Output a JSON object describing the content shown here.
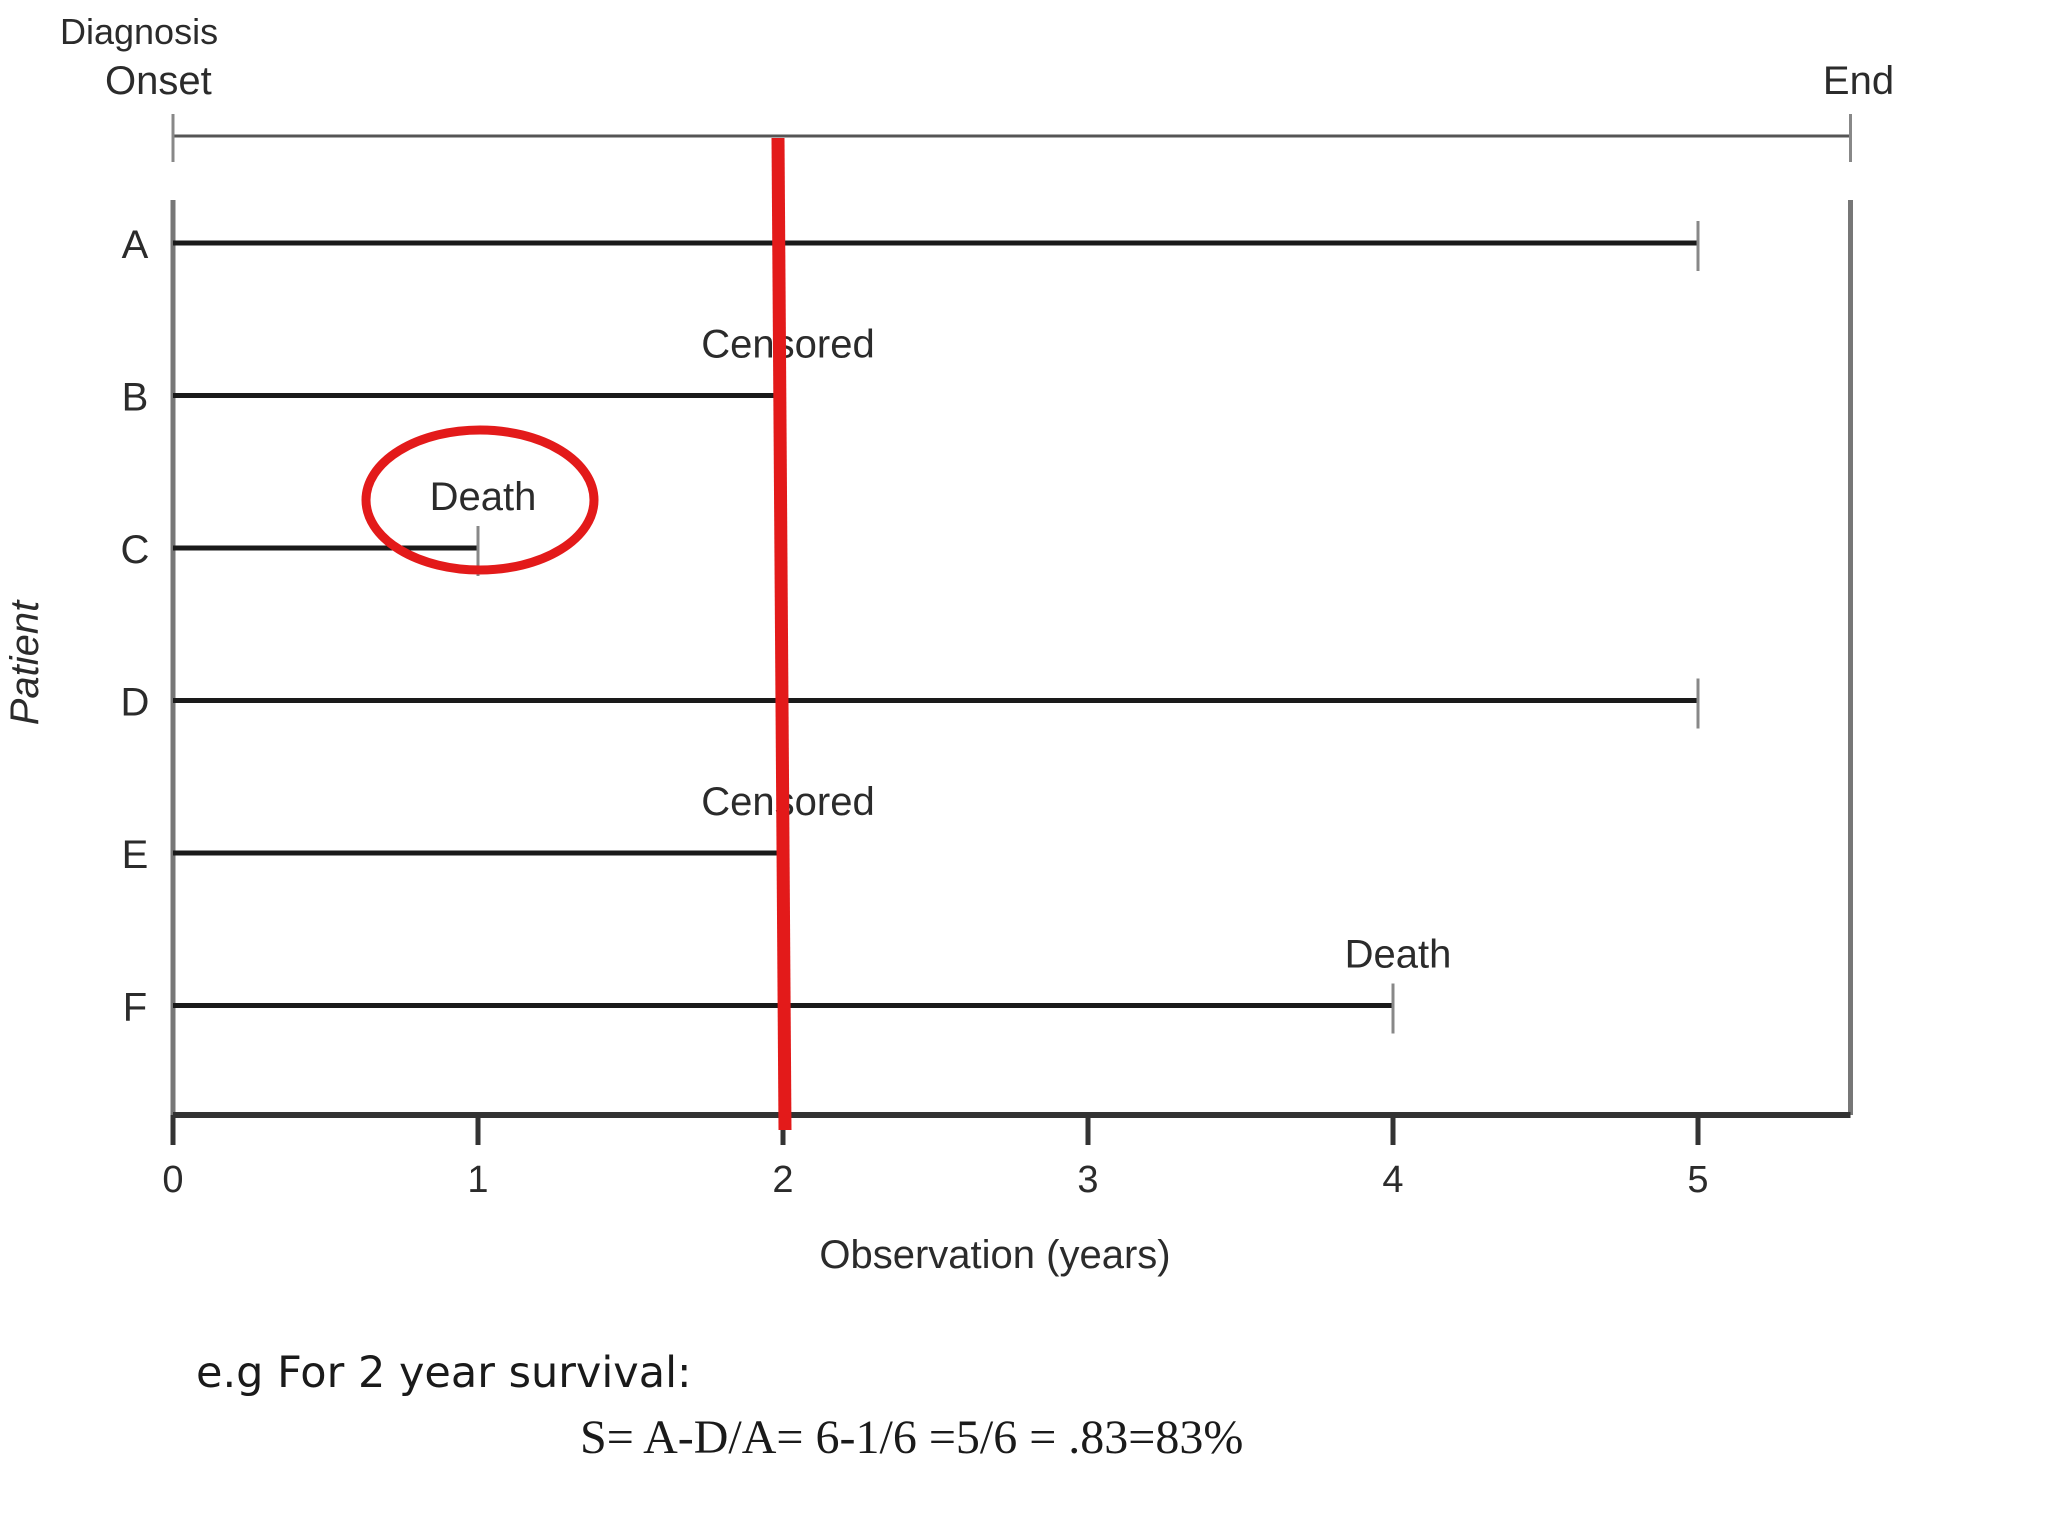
{
  "chart_data": {
    "type": "timeline",
    "header": {
      "start_label": "Diagnosis Onset",
      "end_label": "End"
    },
    "xlabel": "Observation (years)",
    "ylabel": "Patient",
    "xlim": [
      0,
      5.5
    ],
    "xticks": [
      0,
      1,
      2,
      3,
      4,
      5
    ],
    "patients": [
      {
        "name": "A",
        "end": 5,
        "event": ""
      },
      {
        "name": "B",
        "end": 2,
        "event": "Censored"
      },
      {
        "name": "C",
        "end": 1,
        "event": "Death",
        "highlighted": true
      },
      {
        "name": "D",
        "end": 5,
        "event": ""
      },
      {
        "name": "E",
        "end": 2,
        "event": "Censored"
      },
      {
        "name": "F",
        "end": 4,
        "event": "Death"
      }
    ],
    "reference_line_x": 2,
    "colors": {
      "reference": "#e31a1a",
      "highlight": "#e31a1a",
      "line": "#1a1a1a"
    }
  },
  "notes": {
    "line1": "e.g  For 2 year survival:",
    "line2": "S=  A-D/A= 6-1/6 =5/6 = .83=83%"
  }
}
